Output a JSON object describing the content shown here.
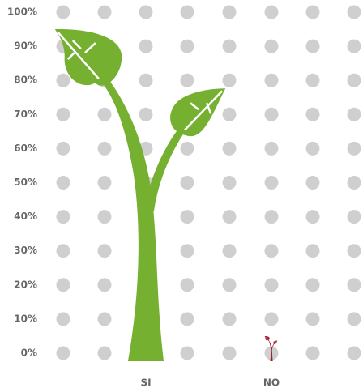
{
  "chart_data": {
    "type": "pictorial-bar",
    "categories": [
      "SI",
      "NO"
    ],
    "values": [
      95,
      5
    ],
    "colors": [
      "#76b030",
      "#a0212e"
    ],
    "ylim": [
      0,
      100
    ],
    "yticks": [
      {
        "value": 0,
        "label": "0%"
      },
      {
        "value": 10,
        "label": "10%"
      },
      {
        "value": 20,
        "label": "20%"
      },
      {
        "value": 30,
        "label": "30%"
      },
      {
        "value": 40,
        "label": "40%"
      },
      {
        "value": 50,
        "label": "50%"
      },
      {
        "value": 60,
        "label": "60%"
      },
      {
        "value": 70,
        "label": "70%"
      },
      {
        "value": 80,
        "label": "80%"
      },
      {
        "value": 90,
        "label": "90%"
      },
      {
        "value": 100,
        "label": "100%"
      }
    ]
  }
}
